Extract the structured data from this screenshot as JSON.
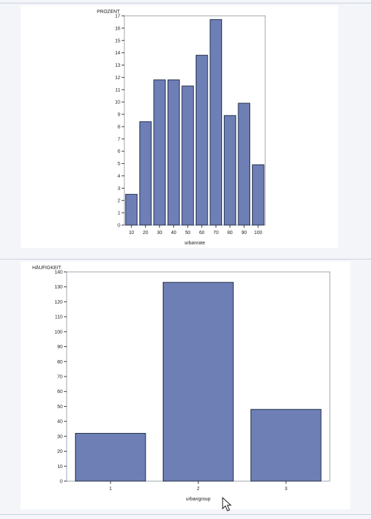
{
  "colors": {
    "bar_fill": "#6d7fb5",
    "bar_stroke": "#1f2a44",
    "frame": "#9aa0a8"
  },
  "chart_data": [
    {
      "type": "bar",
      "ylabel": "PROZENT",
      "xlabel": "urbanrate",
      "categories": [
        "10",
        "20",
        "30",
        "40",
        "50",
        "60",
        "70",
        "80",
        "90",
        "100"
      ],
      "values": [
        2.5,
        8.4,
        11.8,
        11.8,
        11.3,
        13.8,
        16.7,
        8.9,
        9.9,
        4.9
      ],
      "ylim": [
        0,
        17
      ],
      "yticks": [
        "0",
        "1",
        "2",
        "3",
        "4",
        "5",
        "6",
        "7",
        "8",
        "9",
        "10",
        "11",
        "12",
        "13",
        "14",
        "15",
        "16",
        "17"
      ],
      "grid": false
    },
    {
      "type": "bar",
      "ylabel": "HÄUFIGKEIT",
      "xlabel": "urbangroup",
      "categories": [
        "1",
        "2",
        "3"
      ],
      "values": [
        32,
        133,
        48
      ],
      "ylim": [
        0,
        140
      ],
      "yticks": [
        "0",
        "10",
        "20",
        "30",
        "40",
        "50",
        "60",
        "70",
        "80",
        "90",
        "100",
        "110",
        "120",
        "130",
        "140"
      ],
      "grid": false
    }
  ]
}
